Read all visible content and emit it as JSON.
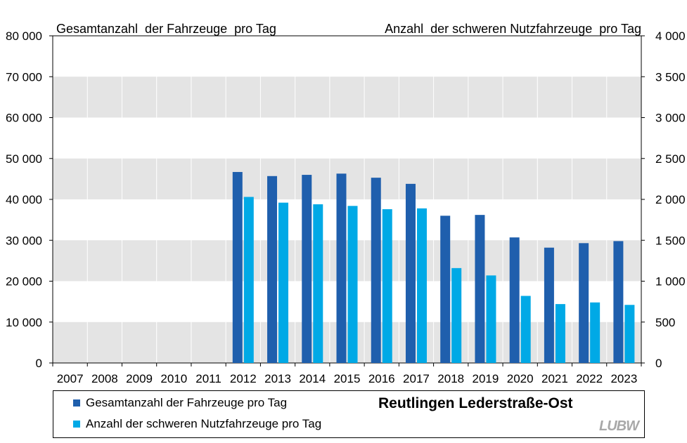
{
  "chart_data": {
    "type": "bar",
    "title": "Reutlingen Lederstraße-Ost",
    "left_axis_title": "Gesamtanzahl  der Fahrzeuge  pro Tag",
    "right_axis_title": "Anzahl  der schweren Nutzfahrzeuge  pro Tag",
    "categories": [
      "2007",
      "2008",
      "2009",
      "2010",
      "2011",
      "2012",
      "2013",
      "2014",
      "2015",
      "2016",
      "2017",
      "2018",
      "2019",
      "2020",
      "2021",
      "2022",
      "2023"
    ],
    "y_left": {
      "lim": [
        0,
        80000
      ],
      "ticks": [
        0,
        10000,
        20000,
        30000,
        40000,
        50000,
        60000,
        70000,
        80000
      ],
      "tick_labels": [
        "0",
        "10 000",
        "20 000",
        "30 000",
        "40 000",
        "50 000",
        "60 000",
        "70 000",
        "80 000"
      ]
    },
    "y_right": {
      "lim": [
        0,
        4000
      ],
      "ticks": [
        0,
        500,
        1000,
        1500,
        2000,
        2500,
        3000,
        3500,
        4000
      ],
      "tick_labels": [
        "0",
        "500",
        "1 000",
        "1 500",
        "2 000",
        "2 500",
        "3 000",
        "3 500",
        "4 000"
      ]
    },
    "series": [
      {
        "name": "Gesamtanzahl der Fahrzeuge pro Tag",
        "axis": "left",
        "color": "#1f5fad",
        "values": [
          null,
          null,
          null,
          null,
          null,
          46700,
          45700,
          46000,
          46300,
          45300,
          43800,
          36000,
          36200,
          30700,
          28200,
          29300,
          29800
        ]
      },
      {
        "name": "Anzahl der schweren Nutzfahrzeuge pro Tag",
        "axis": "right",
        "color": "#00a9e6",
        "values": [
          null,
          null,
          null,
          null,
          null,
          2030,
          1960,
          1940,
          1920,
          1880,
          1890,
          1160,
          1070,
          820,
          720,
          740,
          710
        ]
      }
    ],
    "grid": "alternating horizontal bands",
    "band_color": "#e4e4e4",
    "legend_position": "bottom",
    "logo_text": "LUBW"
  }
}
